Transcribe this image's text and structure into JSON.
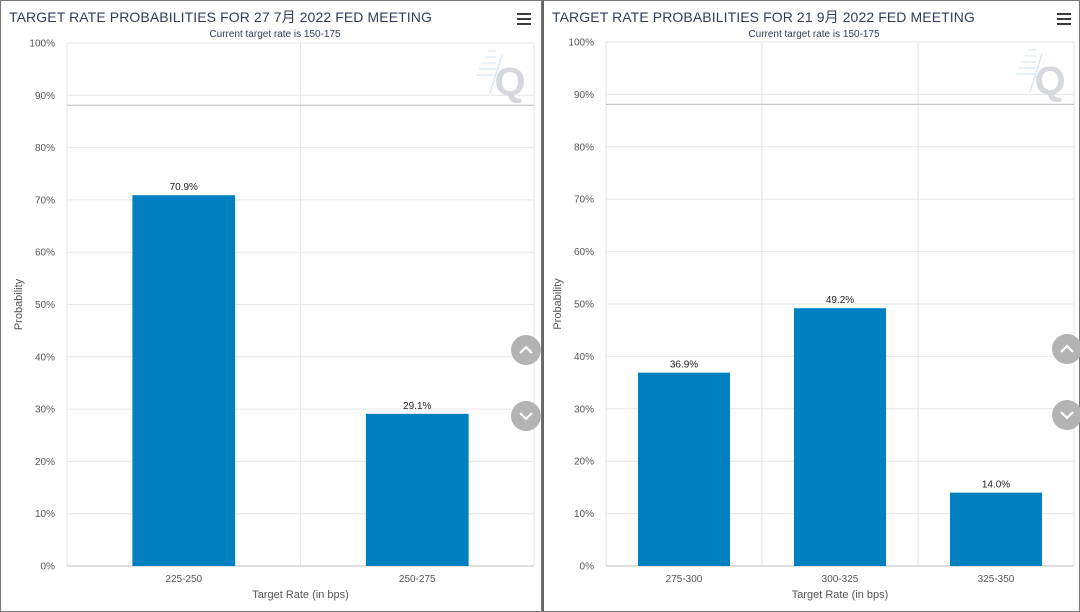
{
  "colors": {
    "bar": "#0080c0",
    "grid": "#e6e6e6",
    "axis_text": "#555555",
    "title": "#2f3e55"
  },
  "icons": {
    "menu": "hamburger-menu-icon",
    "scroll_up": "chevron-up-icon",
    "scroll_down": "chevron-down-icon",
    "watermark": "q-logo-icon"
  },
  "chart_data": [
    {
      "type": "bar",
      "title": "TARGET RATE PROBABILITIES FOR 27 7月 2022 FED MEETING",
      "subtitle": "Current target rate is 150-175",
      "xlabel": "Target Rate (in bps)",
      "ylabel": "Probability",
      "categories": [
        "225-250",
        "250-275"
      ],
      "values": [
        70.9,
        29.1
      ],
      "data_labels": [
        "70.9%",
        "29.1%"
      ],
      "ylim": [
        0,
        100
      ],
      "yticks": [
        "0%",
        "10%",
        "20%",
        "30%",
        "40%",
        "50%",
        "60%",
        "70%",
        "80%",
        "90%",
        "100%"
      ],
      "grid": true
    },
    {
      "type": "bar",
      "title": "TARGET RATE PROBABILITIES FOR 21 9月 2022 FED MEETING",
      "subtitle": "Current target rate is 150-175",
      "xlabel": "Target Rate (in bps)",
      "ylabel": "Probability",
      "categories": [
        "275-300",
        "300-325",
        "325-350"
      ],
      "values": [
        36.9,
        49.2,
        14.0
      ],
      "data_labels": [
        "36.9%",
        "49.2%",
        "14.0%"
      ],
      "ylim": [
        0,
        100
      ],
      "yticks": [
        "0%",
        "10%",
        "20%",
        "30%",
        "40%",
        "50%",
        "60%",
        "70%",
        "80%",
        "90%",
        "100%"
      ],
      "grid": true
    }
  ]
}
